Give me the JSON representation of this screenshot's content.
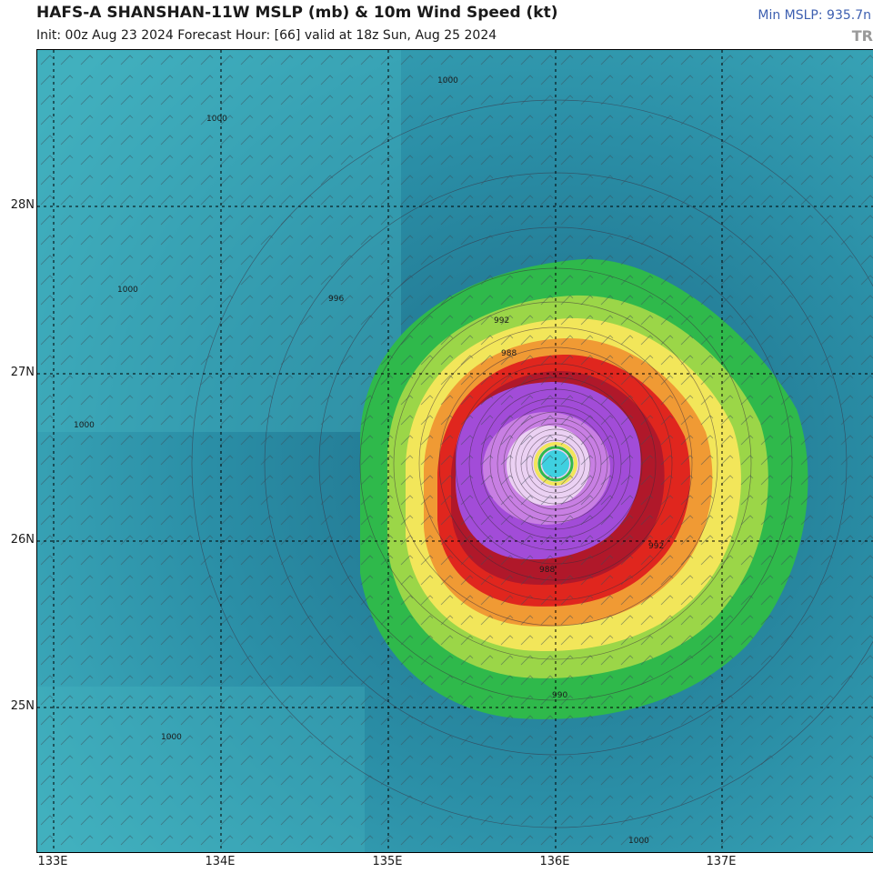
{
  "header": {
    "title": "HAFS-A SHANSHAN-11W MSLP (mb) & 10m Wind Speed (kt)",
    "subtitle": "Init: 00z Aug 23 2024   Forecast Hour: [66]   valid at 18z Sun, Aug 25 2024",
    "min_mslp": "Min MSLP: 935.7n",
    "watermark": "TR"
  },
  "axes": {
    "lat_labels": [
      "28N",
      "27N",
      "26N",
      "25N"
    ],
    "lon_labels": [
      "133E",
      "134E",
      "135E",
      "136E",
      "137E"
    ]
  },
  "isobar_labels": [
    "1000",
    "1000",
    "1000",
    "1000",
    "1000",
    "996",
    "992",
    "988",
    "988",
    "990",
    "992",
    "1000"
  ],
  "colors": {
    "ocean_dark": "#1e6f8a",
    "ocean_light": "#45b3c0",
    "green": "#2db84a",
    "yellow": "#f3e85a",
    "orange": "#f0a032",
    "red": "#e0281e",
    "purple": "#a64ed6",
    "eye": "#3fd0e0"
  }
}
